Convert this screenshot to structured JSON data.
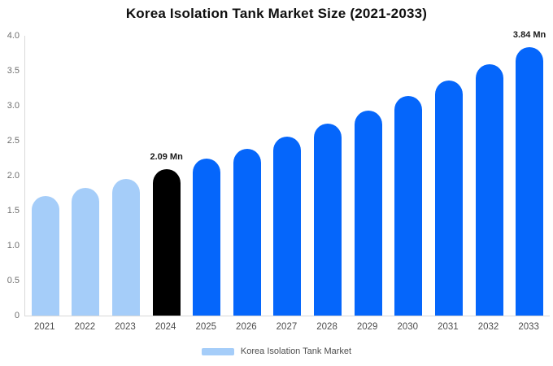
{
  "page": {
    "background": "#ffffff"
  },
  "chart_data": {
    "type": "bar",
    "title": "Korea Isolation Tank Market Size (2021-2033)",
    "categories": [
      "2021",
      "2022",
      "2023",
      "2024",
      "2025",
      "2026",
      "2027",
      "2028",
      "2029",
      "2030",
      "2031",
      "2032",
      "2033"
    ],
    "values": [
      1.71,
      1.83,
      1.95,
      2.09,
      2.24,
      2.39,
      2.56,
      2.74,
      2.93,
      3.14,
      3.36,
      3.59,
      3.84
    ],
    "unit": "Mn",
    "bar_colors": [
      "#a5cdf9",
      "#a5cdf9",
      "#a5cdf9",
      "#000000",
      "#0566fb",
      "#0566fb",
      "#0566fb",
      "#0566fb",
      "#0566fb",
      "#0566fb",
      "#0566fb",
      "#0566fb",
      "#0566fb"
    ],
    "data_labels": [
      {
        "index": 3,
        "text": "2.09 Mn"
      },
      {
        "index": 12,
        "text": "3.84 Mn"
      }
    ],
    "ylim": [
      0,
      4
    ],
    "yticks": [
      {
        "value": 4.0,
        "label": "4.0"
      },
      {
        "value": 3.5,
        "label": "3.5"
      },
      {
        "value": 3.0,
        "label": "3.0"
      },
      {
        "value": 2.5,
        "label": "2.5"
      },
      {
        "value": 2.0,
        "label": "2.0"
      },
      {
        "value": 1.5,
        "label": "1.5"
      },
      {
        "value": 1.0,
        "label": "1.0"
      },
      {
        "value": 0.5,
        "label": "0.5"
      },
      {
        "value": 0,
        "label": "0"
      }
    ],
    "grid": false,
    "legend": {
      "position": "bottom",
      "items": [
        {
          "label": "Korea Isolation Tank Market",
          "color": "#a5cdf9"
        }
      ]
    }
  }
}
